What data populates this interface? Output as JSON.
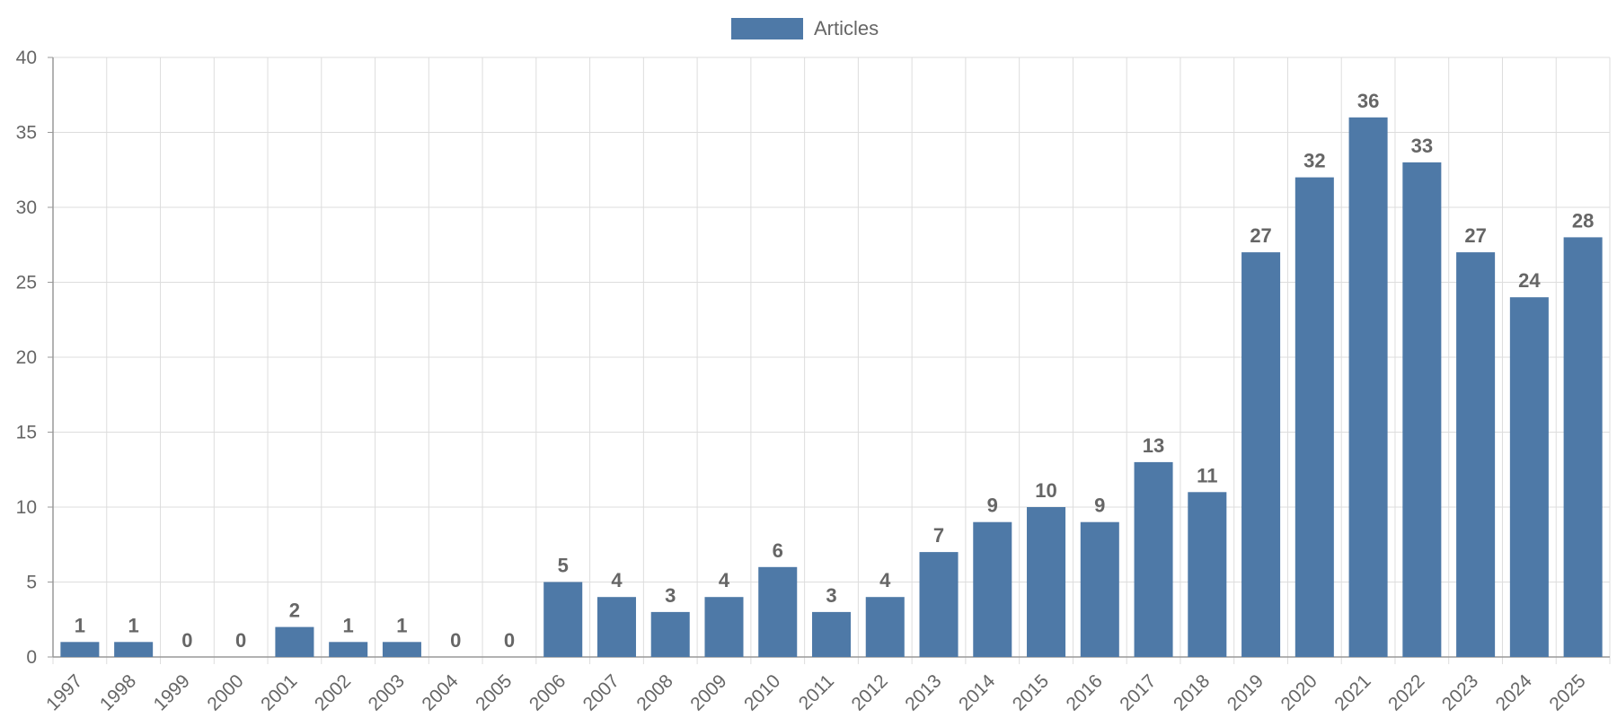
{
  "chart_data": {
    "type": "bar",
    "categories": [
      "1997",
      "1998",
      "1999",
      "2000",
      "2001",
      "2002",
      "2003",
      "2004",
      "2005",
      "2006",
      "2007",
      "2008",
      "2009",
      "2010",
      "2011",
      "2012",
      "2013",
      "2014",
      "2015",
      "2016",
      "2017",
      "2018",
      "2019",
      "2020",
      "2021",
      "2022",
      "2023",
      "2024",
      "2025"
    ],
    "series": [
      {
        "name": "Articles",
        "values": [
          1,
          1,
          0,
          0,
          2,
          1,
          1,
          0,
          0,
          5,
          4,
          3,
          4,
          6,
          3,
          4,
          7,
          9,
          10,
          9,
          13,
          11,
          27,
          32,
          36,
          33,
          27,
          24,
          28
        ]
      }
    ],
    "title": "",
    "xlabel": "",
    "ylabel": "",
    "ylim": [
      0,
      40
    ],
    "yticks": [
      0,
      5,
      10,
      15,
      20,
      25,
      30,
      35,
      40
    ],
    "grid": true,
    "legend_position": "top-center",
    "data_labels": true,
    "x_tick_rotation": "diagonal",
    "colors": {
      "bar": "#4e79a7",
      "grid": "#dddddd",
      "axis": "#999999",
      "text": "#666666"
    }
  }
}
